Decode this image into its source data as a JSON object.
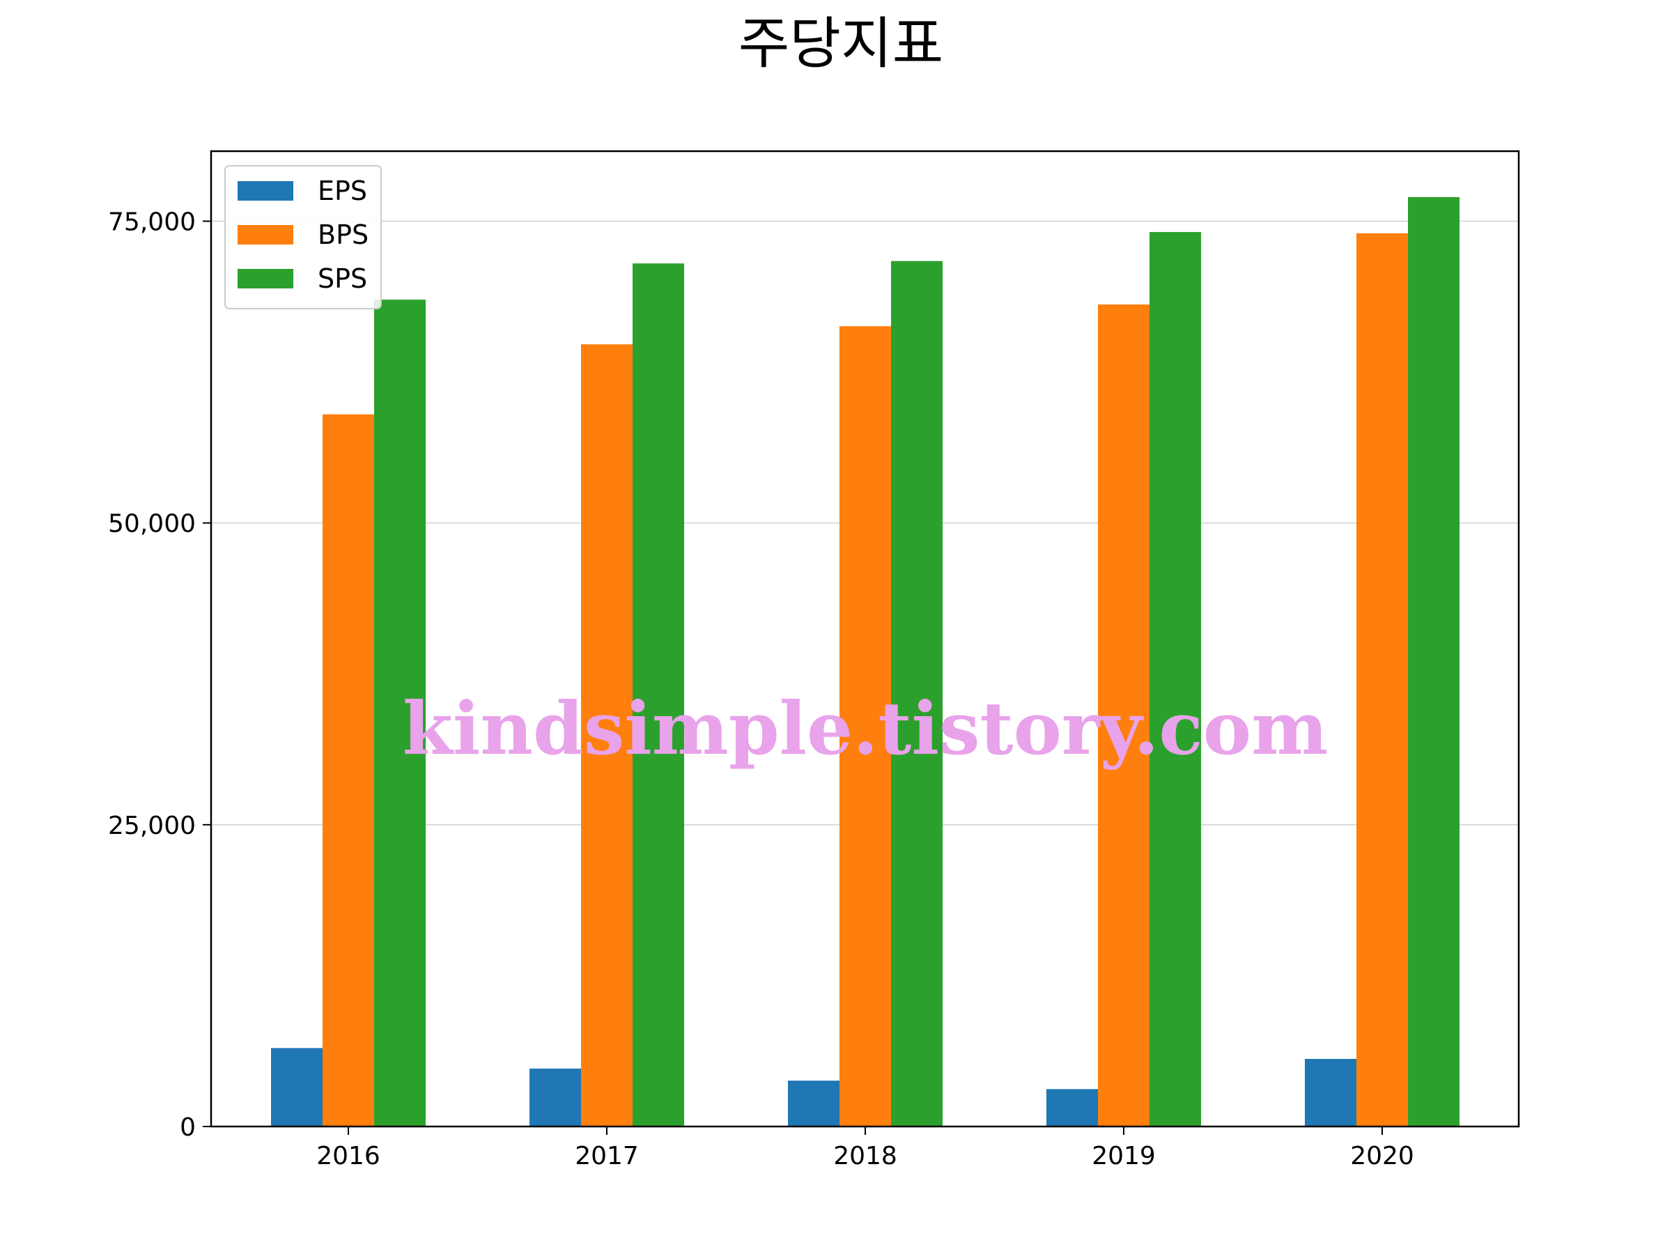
{
  "chart_data": {
    "type": "bar",
    "title": "주당지표",
    "xlabel": "",
    "ylabel": "",
    "categories": [
      "2016",
      "2017",
      "2018",
      "2019",
      "2020"
    ],
    "series": [
      {
        "name": "EPS",
        "color": "#1f77b4",
        "values": [
          6500,
          4800,
          3800,
          3100,
          5600
        ]
      },
      {
        "name": "BPS",
        "color": "#ff7f0e",
        "values": [
          59000,
          64800,
          66300,
          68100,
          74000
        ]
      },
      {
        "name": "SPS",
        "color": "#2ca02c",
        "values": [
          68500,
          71500,
          71700,
          74100,
          77000
        ]
      }
    ],
    "ylim": [
      0,
      80800
    ],
    "yticks": [
      0,
      25000,
      50000,
      75000
    ],
    "ytick_labels": [
      "0",
      "25,000",
      "50,000",
      "75,000"
    ],
    "grid": "horizontal",
    "legend_position": "top-left"
  },
  "watermark": "kindsimple.tistory.com"
}
